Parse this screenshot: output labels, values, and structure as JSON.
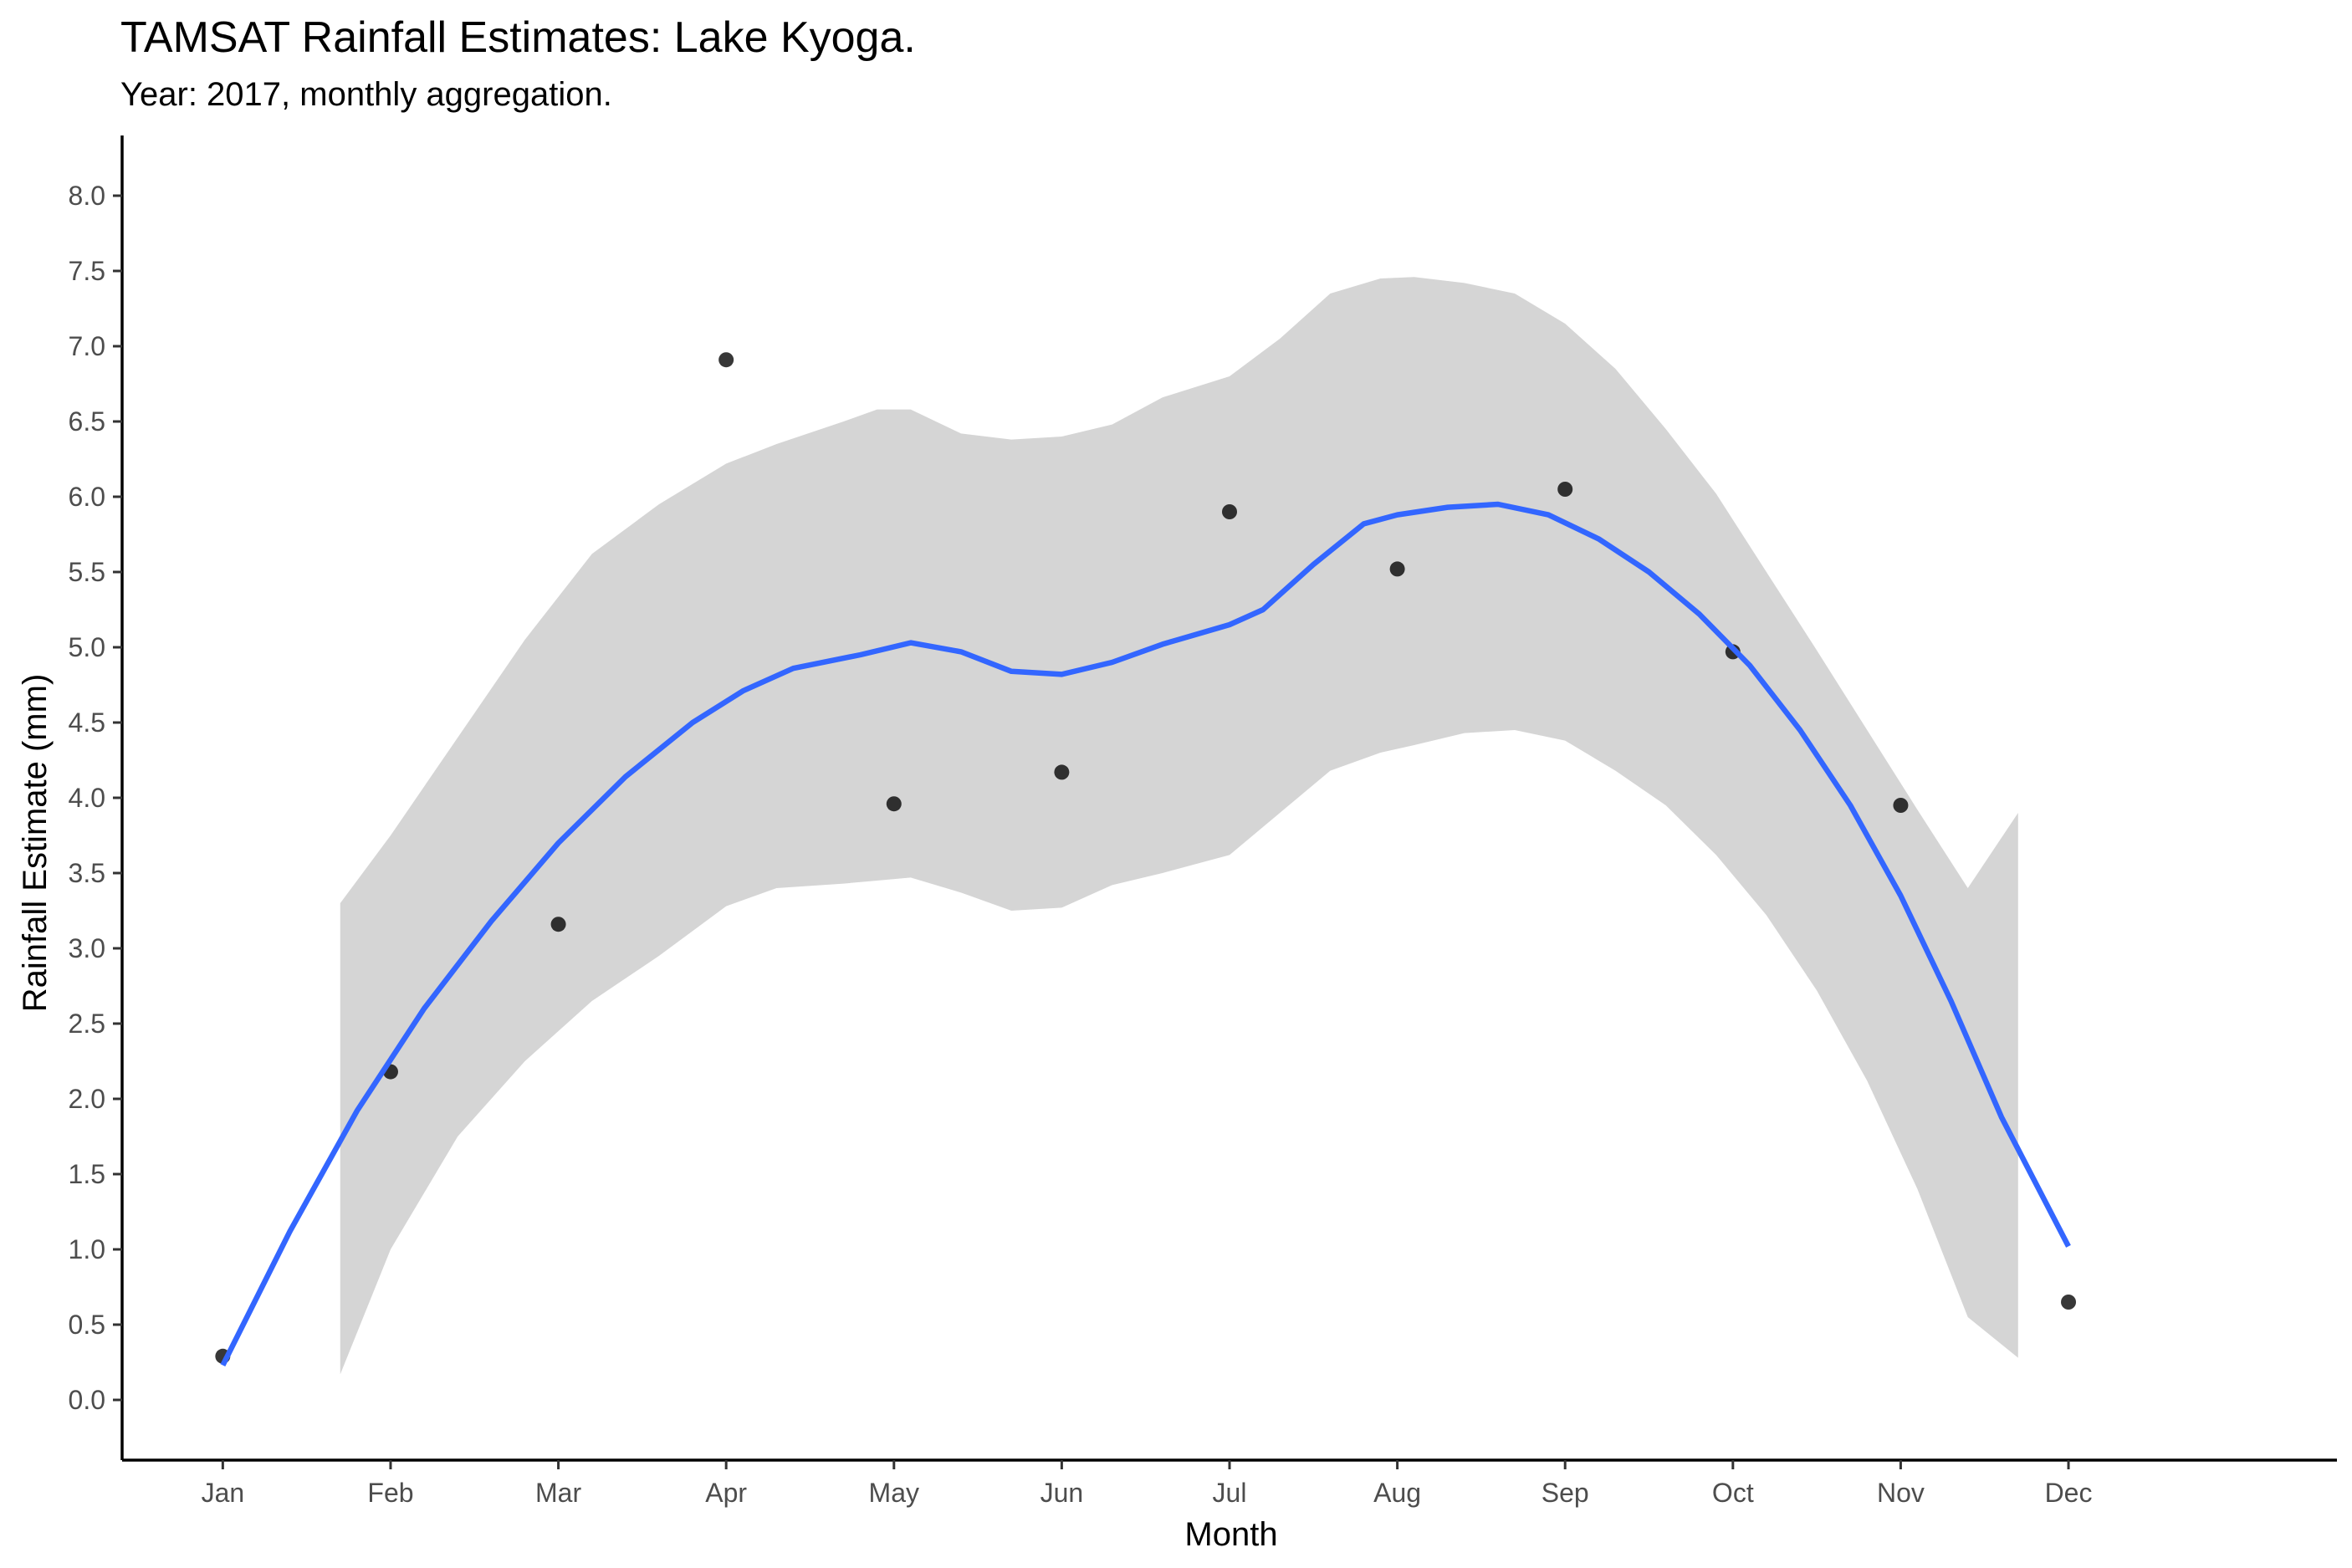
{
  "chart_data": {
    "type": "scatter",
    "title": "TAMSAT Rainfall Estimates: Lake Kyoga.",
    "subtitle": "Year: 2017, monthly aggregation.",
    "xlabel": "Month",
    "ylabel": "Rainfall Estimate (mm)",
    "categories": [
      "Jan",
      "Feb",
      "Mar",
      "Apr",
      "May",
      "Jun",
      "Jul",
      "Aug",
      "Sep",
      "Oct",
      "Nov",
      "Dec"
    ],
    "x_range": [
      0.4,
      13.6
    ],
    "ylim": [
      -0.4,
      8.4
    ],
    "y_ticks": [
      0.0,
      0.5,
      1.0,
      1.5,
      2.0,
      2.5,
      3.0,
      3.5,
      4.0,
      4.5,
      5.0,
      5.5,
      6.0,
      6.5,
      7.0,
      7.5,
      8.0
    ],
    "grid": false,
    "points": {
      "x": [
        1,
        2,
        3,
        4,
        5,
        6,
        7,
        8,
        9,
        10,
        11,
        12
      ],
      "y": [
        0.29,
        2.18,
        3.16,
        6.91,
        3.96,
        4.17,
        5.9,
        5.52,
        6.05,
        4.97,
        3.95,
        0.65
      ],
      "color": "#000000"
    },
    "smooth": {
      "method": "loess",
      "color": "#3366ff",
      "x": [
        1.0,
        1.4,
        1.8,
        2.2,
        2.6,
        3.0,
        3.4,
        3.8,
        4.1,
        4.4,
        4.8,
        5.1,
        5.4,
        5.7,
        6.0,
        6.3,
        6.6,
        7.0,
        7.2,
        7.5,
        7.8,
        8.0,
        8.3,
        8.6,
        8.9,
        9.2,
        9.5,
        9.8,
        10.1,
        10.4,
        10.7,
        11.0,
        11.3,
        11.6,
        12.0
      ],
      "y": [
        0.23,
        1.12,
        1.92,
        2.6,
        3.18,
        3.7,
        4.14,
        4.5,
        4.71,
        4.86,
        4.95,
        5.03,
        4.97,
        4.84,
        4.82,
        4.9,
        5.02,
        5.15,
        5.25,
        5.55,
        5.82,
        5.88,
        5.93,
        5.95,
        5.88,
        5.72,
        5.5,
        5.22,
        4.88,
        4.45,
        3.95,
        3.35,
        2.65,
        1.88,
        1.02
      ]
    },
    "confidence_band": {
      "color": "#d5d5d5",
      "x": [
        1.7,
        2.0,
        2.4,
        2.8,
        3.2,
        3.6,
        4.0,
        4.3,
        4.7,
        4.9,
        5.1,
        5.4,
        5.7,
        6.0,
        6.3,
        6.6,
        7.0,
        7.3,
        7.6,
        7.9,
        8.1,
        8.4,
        8.7,
        9.0,
        9.3,
        9.6,
        9.9,
        10.2,
        10.5,
        10.8,
        11.1,
        11.4,
        11.7
      ],
      "upper": [
        3.3,
        3.75,
        4.4,
        5.05,
        5.62,
        5.95,
        6.22,
        6.35,
        6.5,
        6.58,
        6.58,
        6.42,
        6.38,
        6.4,
        6.48,
        6.66,
        6.8,
        7.05,
        7.35,
        7.45,
        7.46,
        7.42,
        7.35,
        7.15,
        6.85,
        6.45,
        6.02,
        5.5,
        4.98,
        4.45,
        3.92,
        3.4,
        3.9
      ],
      "lower": [
        0.17,
        1.0,
        1.75,
        2.25,
        2.65,
        2.95,
        3.28,
        3.4,
        3.43,
        3.45,
        3.47,
        3.37,
        3.25,
        3.27,
        3.42,
        3.5,
        3.62,
        3.9,
        4.18,
        4.3,
        4.35,
        4.43,
        4.45,
        4.38,
        4.18,
        3.95,
        3.62,
        3.22,
        2.72,
        2.12,
        1.4,
        0.55,
        0.28
      ]
    }
  }
}
